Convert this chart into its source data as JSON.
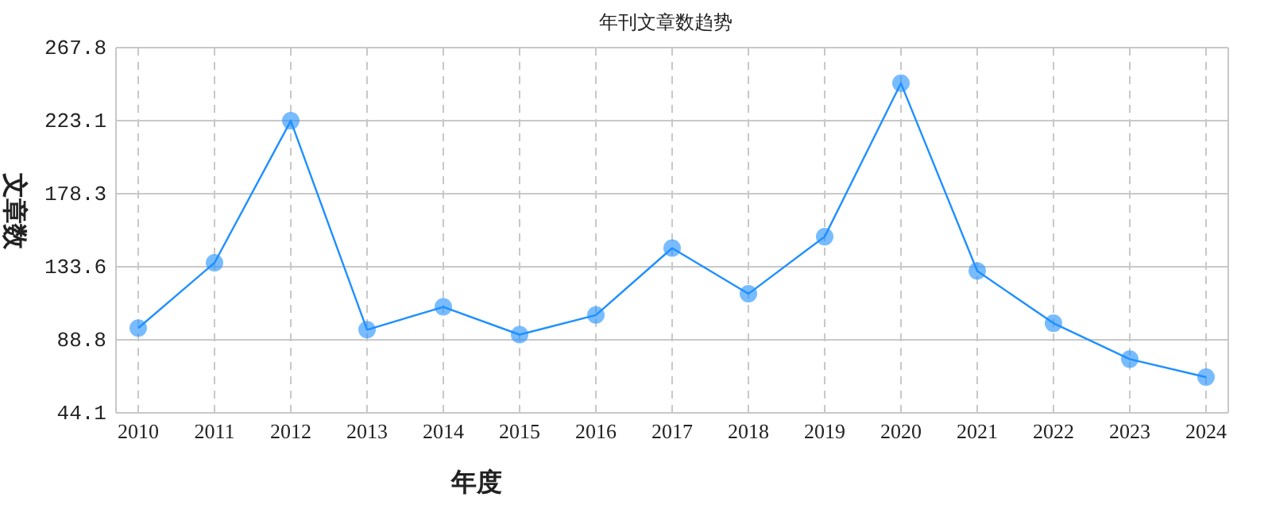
{
  "chart_data": {
    "type": "line",
    "title": "年刊文章数趋势",
    "xlabel": "年度",
    "ylabel": "文章数",
    "categories": [
      "2010",
      "2011",
      "2012",
      "2013",
      "2014",
      "2015",
      "2016",
      "2017",
      "2018",
      "2019",
      "2020",
      "2021",
      "2022",
      "2023",
      "2024"
    ],
    "series": [
      {
        "color": "#1e90ff",
        "values": [
          96,
          136,
          223,
          95,
          109,
          92,
          104,
          145,
          117,
          152,
          246,
          131,
          99,
          77,
          66
        ]
      }
    ],
    "ylim": [
      44.1,
      267.8
    ],
    "yticks": [
      44.1,
      88.8,
      133.6,
      178.3,
      223.1,
      267.8
    ],
    "grid": true,
    "marker": "circle",
    "line_style": "solid"
  }
}
